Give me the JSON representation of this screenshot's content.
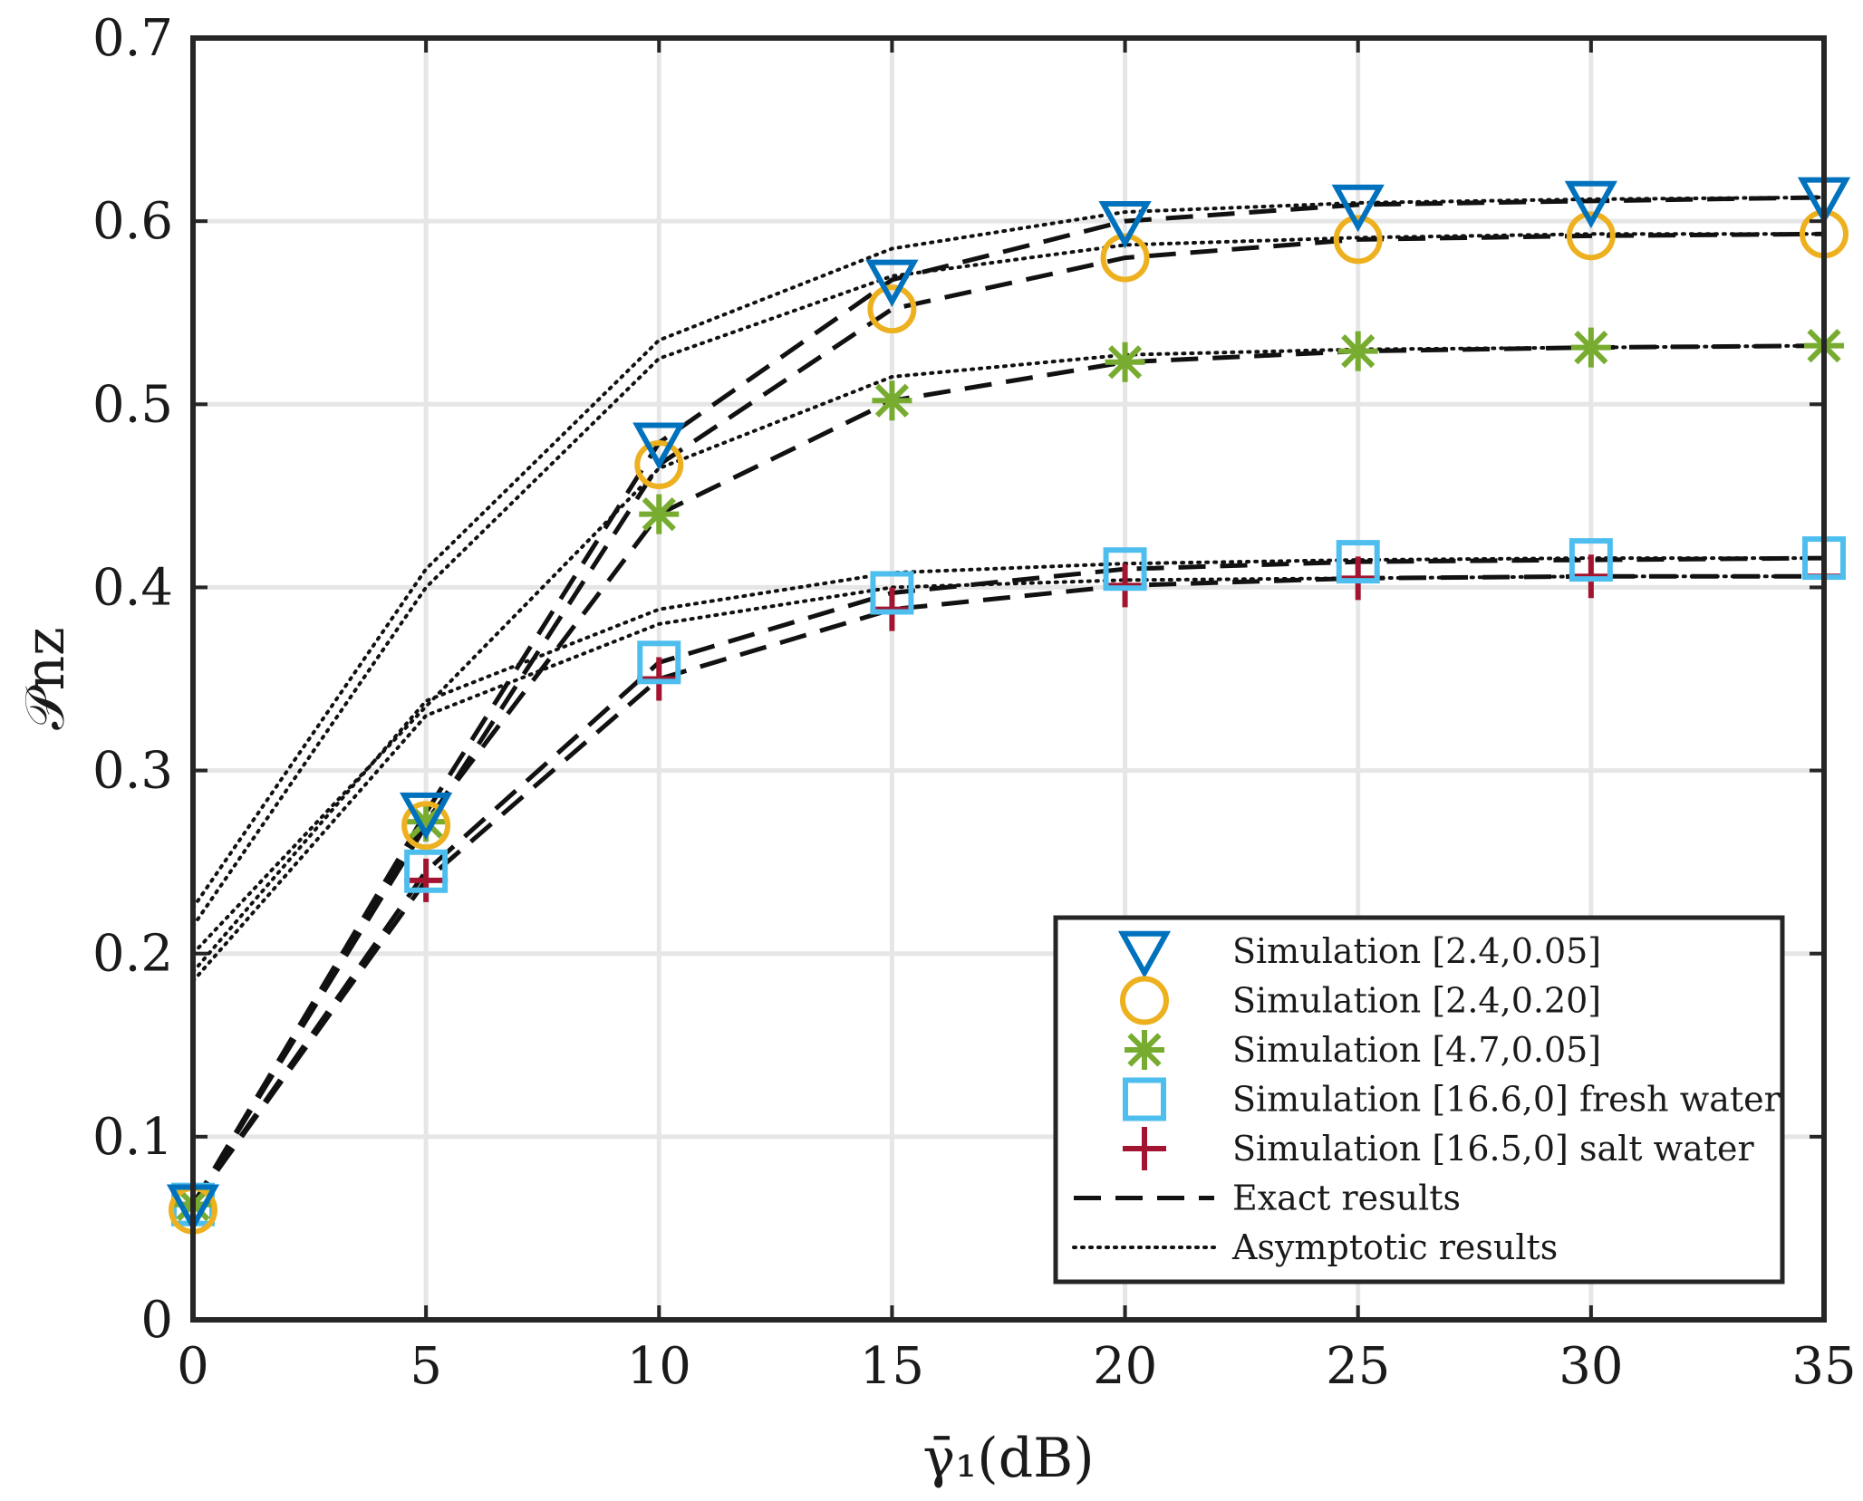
{
  "chart_data": {
    "type": "line",
    "title": "",
    "xlabel": "γ̄₁(dB)",
    "ylabel": "𝒫nz",
    "xlim": [
      0,
      35
    ],
    "ylim": [
      0,
      0.7
    ],
    "grid": true,
    "legend_position": "bottom-right",
    "x": [
      0,
      5,
      10,
      15,
      20,
      25,
      30,
      35
    ],
    "x_ticks": [
      "0",
      "5",
      "10",
      "15",
      "20",
      "25",
      "30",
      "35"
    ],
    "y_ticks": [
      "0",
      "0.1",
      "0.2",
      "0.3",
      "0.4",
      "0.5",
      "0.6",
      "0.7"
    ],
    "x_tick_values": [
      0,
      5,
      10,
      15,
      20,
      25,
      30,
      35
    ],
    "y_tick_values": [
      0,
      0.1,
      0.2,
      0.3,
      0.4,
      0.5,
      0.6,
      0.7
    ],
    "series": [
      {
        "name": "Simulation [2.4,0.05]",
        "marker": "triangle-down",
        "color": "#0072BD",
        "values": [
          0.063,
          0.277,
          0.479,
          0.568,
          0.6,
          0.609,
          0.611,
          0.613
        ],
        "exact": [
          0.063,
          0.277,
          0.479,
          0.568,
          0.6,
          0.609,
          0.611,
          0.613
        ],
        "asymptotic": [
          0.225,
          0.41,
          0.535,
          0.585,
          0.605,
          0.61,
          0.612,
          0.613
        ]
      },
      {
        "name": "Simulation [2.4,0.20]",
        "marker": "circle",
        "color": "#EDB120",
        "values": [
          0.06,
          0.27,
          0.467,
          0.552,
          0.58,
          0.59,
          0.592,
          0.593
        ],
        "exact": [
          0.063,
          0.27,
          0.467,
          0.552,
          0.58,
          0.59,
          0.592,
          0.593
        ],
        "asymptotic": [
          0.215,
          0.4,
          0.525,
          0.57,
          0.587,
          0.591,
          0.593,
          0.593
        ]
      },
      {
        "name": "Simulation [4.7,0.05]",
        "marker": "asterisk",
        "color": "#77AC30",
        "values": [
          0.063,
          0.272,
          0.44,
          0.502,
          0.523,
          0.529,
          0.531,
          0.532
        ],
        "exact": [
          0.063,
          0.272,
          0.44,
          0.502,
          0.523,
          0.529,
          0.531,
          0.532
        ],
        "asymptotic": [
          0.2,
          0.335,
          0.465,
          0.515,
          0.527,
          0.53,
          0.531,
          0.532
        ]
      },
      {
        "name": "Simulation [16.6,0] fresh water",
        "marker": "square",
        "color": "#4DBEEE",
        "values": [
          0.063,
          0.245,
          0.359,
          0.397,
          0.41,
          0.414,
          0.415,
          0.416
        ],
        "exact": [
          0.063,
          0.245,
          0.359,
          0.397,
          0.41,
          0.414,
          0.415,
          0.416
        ],
        "asymptotic": [
          0.19,
          0.338,
          0.388,
          0.408,
          0.413,
          0.415,
          0.416,
          0.416
        ]
      },
      {
        "name": "Simulation [16.5,0] salt water",
        "marker": "plus",
        "color": "#A2142F",
        "values": [
          0.063,
          0.24,
          0.35,
          0.388,
          0.401,
          0.405,
          0.406,
          0.406
        ],
        "exact": [
          0.063,
          0.24,
          0.35,
          0.388,
          0.401,
          0.405,
          0.406,
          0.406
        ],
        "asymptotic": [
          0.185,
          0.33,
          0.38,
          0.4,
          0.404,
          0.405,
          0.406,
          0.406
        ]
      }
    ],
    "line_legend": [
      {
        "name": "Exact results",
        "style": "dashed"
      },
      {
        "name": "Asymptotic results",
        "style": "dotted"
      }
    ]
  }
}
